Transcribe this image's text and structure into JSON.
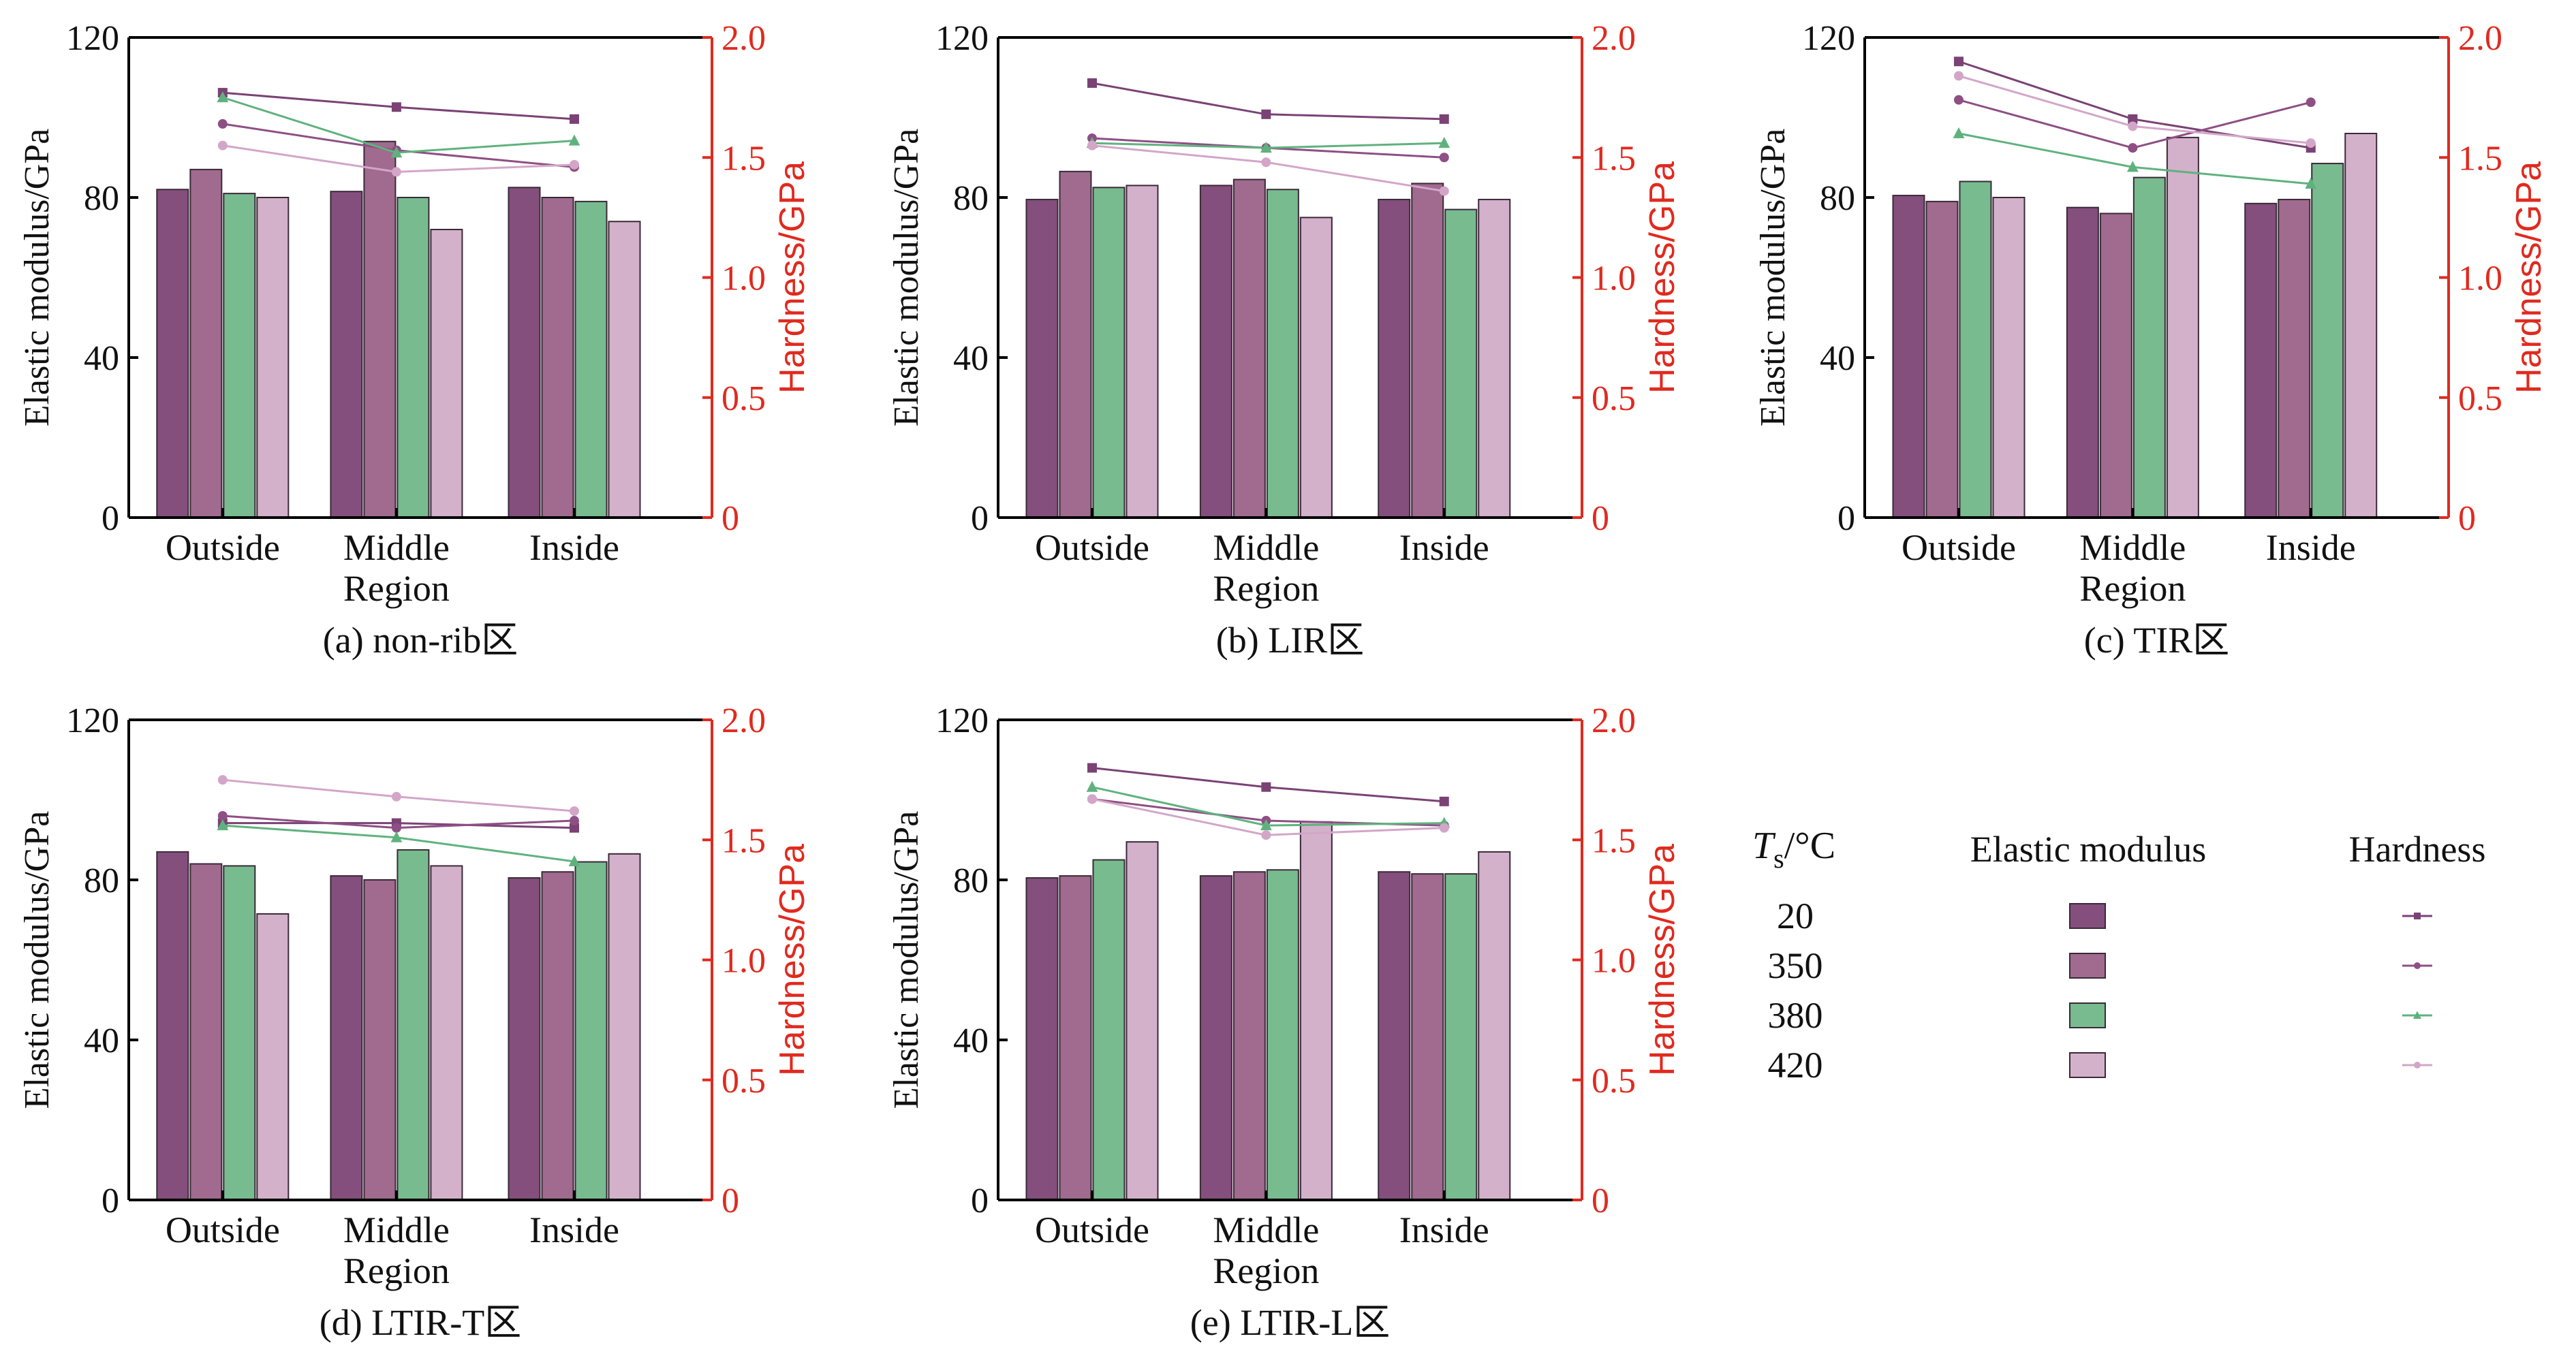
{
  "colors": {
    "s20": "#844f7c",
    "s350": "#a06b8e",
    "s380": "#78bb8f",
    "s420": "#d4b1ca",
    "line20": "#7a4275",
    "line350": "#8e4f84",
    "line380": "#5fb27e",
    "line420": "#d3a6c8",
    "right_axis": "#e02a1f",
    "axis": "#000000"
  },
  "chart_data": [
    {
      "type": "bar",
      "caption": "(a) non-rib区",
      "categories": [
        "Outside",
        "Middle Region",
        "Inside"
      ],
      "category_lines": [
        [
          "Outside"
        ],
        [
          "Middle",
          "Region"
        ],
        [
          "Inside"
        ]
      ],
      "ylabel": "Elastic modulus/GPa",
      "y2label": "Hardness/GPa",
      "ylim": [
        0,
        120
      ],
      "yticks": [
        0,
        40,
        80,
        120
      ],
      "y2lim": [
        0,
        2.0
      ],
      "y2ticks": [
        "0",
        "0.5",
        "1.0",
        "1.5",
        "2.0"
      ],
      "series": [
        {
          "name": "20",
          "values": [
            82,
            81.5,
            82.5
          ]
        },
        {
          "name": "350",
          "values": [
            87,
            94,
            80
          ]
        },
        {
          "name": "380",
          "values": [
            81,
            80,
            79
          ]
        },
        {
          "name": "420",
          "values": [
            80,
            72,
            74
          ]
        }
      ],
      "lines": [
        {
          "name": "20",
          "marker": "square",
          "values": [
            1.77,
            1.71,
            1.66
          ]
        },
        {
          "name": "350",
          "marker": "circle",
          "values": [
            1.64,
            1.53,
            1.46
          ]
        },
        {
          "name": "380",
          "marker": "triangle",
          "values": [
            1.75,
            1.52,
            1.57
          ]
        },
        {
          "name": "420",
          "marker": "circle",
          "values": [
            1.55,
            1.44,
            1.47
          ]
        }
      ]
    },
    {
      "type": "bar",
      "caption": "(b) LIR区",
      "categories": [
        "Outside",
        "Middle Region",
        "Inside"
      ],
      "category_lines": [
        [
          "Outside"
        ],
        [
          "Middle",
          "Region"
        ],
        [
          "Inside"
        ]
      ],
      "ylabel": "Elastic modulus/GPa",
      "y2label": "Hardness/GPa",
      "ylim": [
        0,
        120
      ],
      "yticks": [
        0,
        40,
        80,
        120
      ],
      "y2lim": [
        0,
        2.0
      ],
      "y2ticks": [
        "0",
        "0.5",
        "1.0",
        "1.5",
        "2.0"
      ],
      "series": [
        {
          "name": "20",
          "values": [
            79.5,
            83,
            79.5
          ]
        },
        {
          "name": "350",
          "values": [
            86.5,
            84.5,
            83.5
          ]
        },
        {
          "name": "380",
          "values": [
            82.5,
            82,
            77
          ]
        },
        {
          "name": "420",
          "values": [
            83,
            75,
            79.5
          ]
        }
      ],
      "lines": [
        {
          "name": "20",
          "marker": "square",
          "values": [
            1.81,
            1.68,
            1.66
          ]
        },
        {
          "name": "350",
          "marker": "circle",
          "values": [
            1.58,
            1.54,
            1.5
          ]
        },
        {
          "name": "380",
          "marker": "triangle",
          "values": [
            1.56,
            1.54,
            1.56
          ]
        },
        {
          "name": "420",
          "marker": "circle",
          "values": [
            1.55,
            1.48,
            1.36
          ]
        }
      ]
    },
    {
      "type": "bar",
      "caption": "(c) TIR区",
      "categories": [
        "Outside",
        "Middle Region",
        "Inside"
      ],
      "category_lines": [
        [
          "Outside"
        ],
        [
          "Middle",
          "Region"
        ],
        [
          "Inside"
        ]
      ],
      "ylabel": "Elastic modulus/GPa",
      "y2label": "Hardness/GPa",
      "ylim": [
        0,
        120
      ],
      "yticks": [
        0,
        40,
        80,
        120
      ],
      "y2lim": [
        0,
        2.0
      ],
      "y2ticks": [
        "0",
        "0.5",
        "1.0",
        "1.5",
        "2.0"
      ],
      "series": [
        {
          "name": "20",
          "values": [
            80.5,
            77.5,
            78.5
          ]
        },
        {
          "name": "350",
          "values": [
            79,
            76,
            79.5
          ]
        },
        {
          "name": "380",
          "values": [
            84,
            85,
            88.5
          ]
        },
        {
          "name": "420",
          "values": [
            80,
            95,
            96
          ]
        }
      ],
      "lines": [
        {
          "name": "20",
          "marker": "square",
          "values": [
            1.9,
            1.66,
            1.54
          ]
        },
        {
          "name": "350",
          "marker": "circle",
          "values": [
            1.74,
            1.54,
            1.73
          ]
        },
        {
          "name": "380",
          "marker": "triangle",
          "values": [
            1.6,
            1.46,
            1.39
          ]
        },
        {
          "name": "420",
          "marker": "circle",
          "values": [
            1.84,
            1.63,
            1.56
          ]
        }
      ]
    },
    {
      "type": "bar",
      "caption": "(d) LTIR-T区",
      "categories": [
        "Outside",
        "Middle Region",
        "Inside"
      ],
      "category_lines": [
        [
          "Outside"
        ],
        [
          "Middle",
          "Region"
        ],
        [
          "Inside"
        ]
      ],
      "ylabel": "Elastic modulus/GPa",
      "y2label": "Hardness/GPa",
      "ylim": [
        0,
        120
      ],
      "yticks": [
        0,
        40,
        80,
        120
      ],
      "y2lim": [
        0,
        2.0
      ],
      "y2ticks": [
        "0",
        "0.5",
        "1.0",
        "1.5",
        "2.0"
      ],
      "series": [
        {
          "name": "20",
          "values": [
            87,
            81,
            80.5
          ]
        },
        {
          "name": "350",
          "values": [
            84,
            80,
            82
          ]
        },
        {
          "name": "380",
          "values": [
            83.5,
            87.5,
            84.5
          ]
        },
        {
          "name": "420",
          "values": [
            71.5,
            83.5,
            86.5
          ]
        }
      ],
      "lines": [
        {
          "name": "20",
          "marker": "square",
          "values": [
            1.57,
            1.57,
            1.55
          ]
        },
        {
          "name": "350",
          "marker": "circle",
          "values": [
            1.6,
            1.55,
            1.58
          ]
        },
        {
          "name": "380",
          "marker": "triangle",
          "values": [
            1.56,
            1.51,
            1.41
          ]
        },
        {
          "name": "420",
          "marker": "circle",
          "values": [
            1.75,
            1.68,
            1.62
          ]
        }
      ]
    },
    {
      "type": "bar",
      "caption": "(e) LTIR-L区",
      "categories": [
        "Outside",
        "Middle Region",
        "Inside"
      ],
      "category_lines": [
        [
          "Outside"
        ],
        [
          "Middle",
          "Region"
        ],
        [
          "Inside"
        ]
      ],
      "ylabel": "Elastic modulus/GPa",
      "y2label": "Hardness/GPa",
      "ylim": [
        0,
        120
      ],
      "yticks": [
        0,
        40,
        80,
        120
      ],
      "y2lim": [
        0,
        2.0
      ],
      "y2ticks": [
        "0",
        "0.5",
        "1.0",
        "1.5",
        "2.0"
      ],
      "series": [
        {
          "name": "20",
          "values": [
            80.5,
            81,
            82
          ]
        },
        {
          "name": "350",
          "values": [
            81,
            82,
            81.5
          ]
        },
        {
          "name": "380",
          "values": [
            85,
            82.5,
            81.5
          ]
        },
        {
          "name": "420",
          "values": [
            89.5,
            94.5,
            87
          ]
        }
      ],
      "lines": [
        {
          "name": "20",
          "marker": "square",
          "values": [
            1.8,
            1.72,
            1.66
          ]
        },
        {
          "name": "350",
          "marker": "circle",
          "values": [
            1.67,
            1.58,
            1.56
          ]
        },
        {
          "name": "380",
          "marker": "triangle",
          "values": [
            1.72,
            1.56,
            1.57
          ]
        },
        {
          "name": "420",
          "marker": "circle",
          "values": [
            1.67,
            1.52,
            1.55
          ]
        }
      ]
    }
  ],
  "legend": {
    "ts_symbol": "T",
    "ts_sub": "s",
    "ts_unit": "/°C",
    "col_elastic": "Elastic modulus",
    "col_hardness": "Hardness",
    "rows": [
      "20",
      "350",
      "380",
      "420"
    ]
  }
}
